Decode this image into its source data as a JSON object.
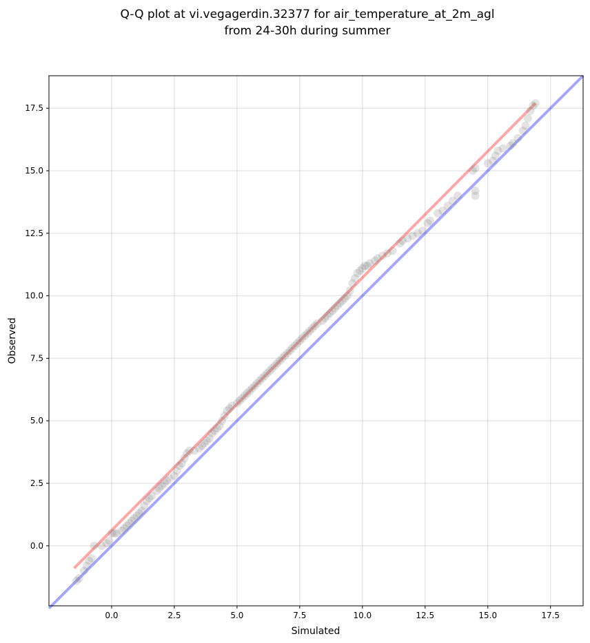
{
  "chart_data": {
    "type": "scatter",
    "title": "Q-Q plot at vi.vegagerdin.32377 for air_temperature_at_2m_agl",
    "subtitle": "from 24-30h during summer",
    "xlabel": "Simulated",
    "ylabel": "Observed",
    "xlim": [
      -2.5,
      18.8
    ],
    "ylim": [
      -2.4,
      18.8
    ],
    "xticks": [
      0.0,
      2.5,
      5.0,
      7.5,
      10.0,
      12.5,
      15.0,
      17.5
    ],
    "yticks": [
      0.0,
      2.5,
      5.0,
      7.5,
      10.0,
      12.5,
      15.0,
      17.5
    ],
    "xtick_labels": [
      "0.0",
      "2.5",
      "5.0",
      "7.5",
      "10.0",
      "12.5",
      "15.0",
      "17.5"
    ],
    "ytick_labels": [
      "0.0",
      "2.5",
      "5.0",
      "7.5",
      "10.0",
      "12.5",
      "15.0",
      "17.5"
    ],
    "grid": true,
    "point_color": "#808080",
    "identity_line": {
      "color": "#0000ff",
      "x": [
        -2.5,
        18.8
      ],
      "y": [
        -2.5,
        18.8
      ]
    },
    "fit_line": {
      "color": "#ff0000",
      "x": [
        -1.5,
        16.9
      ],
      "y": [
        -0.9,
        17.7
      ]
    },
    "series": [
      {
        "points": [
          [
            -1.4,
            -1.4
          ],
          [
            -1.3,
            -1.3
          ],
          [
            -1.1,
            -1.0
          ],
          [
            -1.0,
            -0.8
          ],
          [
            -0.9,
            -0.6
          ],
          [
            -0.8,
            -0.5
          ],
          [
            -0.7,
            0.0
          ],
          [
            -0.4,
            0.0
          ],
          [
            -0.2,
            0.1
          ],
          [
            -0.1,
            0.2
          ],
          [
            0.0,
            0.5
          ],
          [
            0.1,
            0.5
          ],
          [
            0.2,
            0.5
          ],
          [
            0.4,
            0.6
          ],
          [
            0.5,
            0.7
          ],
          [
            0.6,
            0.8
          ],
          [
            0.7,
            0.9
          ],
          [
            0.8,
            1.0
          ],
          [
            0.9,
            1.1
          ],
          [
            1.0,
            1.2
          ],
          [
            1.1,
            1.3
          ],
          [
            1.2,
            1.4
          ],
          [
            1.3,
            1.6
          ],
          [
            1.4,
            1.8
          ],
          [
            1.5,
            1.9
          ],
          [
            1.6,
            2.0
          ],
          [
            1.8,
            2.2
          ],
          [
            1.9,
            2.3
          ],
          [
            2.0,
            2.4
          ],
          [
            2.1,
            2.5
          ],
          [
            2.2,
            2.6
          ],
          [
            2.3,
            2.7
          ],
          [
            2.5,
            2.8
          ],
          [
            2.6,
            3.0
          ],
          [
            2.7,
            3.2
          ],
          [
            2.8,
            3.3
          ],
          [
            2.9,
            3.5
          ],
          [
            3.0,
            3.7
          ],
          [
            3.1,
            3.8
          ],
          [
            3.3,
            3.8
          ],
          [
            3.5,
            3.9
          ],
          [
            3.6,
            4.0
          ],
          [
            3.7,
            4.1
          ],
          [
            3.8,
            4.2
          ],
          [
            3.9,
            4.3
          ],
          [
            4.0,
            4.5
          ],
          [
            4.1,
            4.6
          ],
          [
            4.2,
            4.7
          ],
          [
            4.3,
            4.8
          ],
          [
            4.4,
            5.0
          ],
          [
            4.5,
            5.2
          ],
          [
            4.6,
            5.4
          ],
          [
            4.7,
            5.5
          ],
          [
            4.8,
            5.6
          ],
          [
            5.0,
            5.7
          ],
          [
            5.1,
            5.8
          ],
          [
            5.2,
            5.9
          ],
          [
            5.3,
            6.0
          ],
          [
            5.4,
            6.1
          ],
          [
            5.5,
            6.2
          ],
          [
            5.6,
            6.3
          ],
          [
            5.7,
            6.4
          ],
          [
            5.8,
            6.5
          ],
          [
            5.9,
            6.6
          ],
          [
            6.0,
            6.7
          ],
          [
            6.1,
            6.8
          ],
          [
            6.2,
            6.9
          ],
          [
            6.3,
            7.0
          ],
          [
            6.4,
            7.1
          ],
          [
            6.5,
            7.2
          ],
          [
            6.6,
            7.3
          ],
          [
            6.7,
            7.4
          ],
          [
            6.8,
            7.5
          ],
          [
            6.9,
            7.6
          ],
          [
            7.0,
            7.7
          ],
          [
            7.1,
            7.8
          ],
          [
            7.2,
            7.9
          ],
          [
            7.3,
            8.0
          ],
          [
            7.4,
            8.1
          ],
          [
            7.5,
            8.2
          ],
          [
            7.6,
            8.3
          ],
          [
            7.7,
            8.4
          ],
          [
            7.8,
            8.5
          ],
          [
            7.9,
            8.6
          ],
          [
            8.0,
            8.7
          ],
          [
            8.1,
            8.8
          ],
          [
            8.2,
            8.9
          ],
          [
            8.4,
            9.0
          ],
          [
            8.5,
            9.1
          ],
          [
            8.6,
            9.2
          ],
          [
            8.7,
            9.3
          ],
          [
            8.8,
            9.4
          ],
          [
            8.9,
            9.5
          ],
          [
            9.0,
            9.6
          ],
          [
            9.1,
            9.7
          ],
          [
            9.2,
            9.8
          ],
          [
            9.3,
            9.9
          ],
          [
            9.4,
            10.0
          ],
          [
            9.5,
            10.2
          ],
          [
            9.6,
            10.5
          ],
          [
            9.7,
            10.7
          ],
          [
            9.8,
            10.9
          ],
          [
            9.9,
            11.0
          ],
          [
            10.0,
            11.1
          ],
          [
            10.1,
            11.2
          ],
          [
            10.2,
            11.2
          ],
          [
            10.3,
            11.3
          ],
          [
            10.5,
            11.4
          ],
          [
            10.6,
            11.5
          ],
          [
            10.8,
            11.6
          ],
          [
            11.0,
            11.7
          ],
          [
            11.2,
            11.8
          ],
          [
            11.5,
            12.1
          ],
          [
            11.6,
            12.2
          ],
          [
            11.8,
            12.3
          ],
          [
            12.0,
            12.4
          ],
          [
            12.2,
            12.5
          ],
          [
            12.4,
            12.6
          ],
          [
            12.6,
            12.9
          ],
          [
            12.7,
            13.0
          ],
          [
            13.0,
            13.3
          ],
          [
            13.2,
            13.4
          ],
          [
            13.4,
            13.6
          ],
          [
            13.6,
            13.8
          ],
          [
            13.8,
            14.0
          ],
          [
            14.5,
            14.0
          ],
          [
            14.5,
            14.2
          ],
          [
            14.4,
            15.0
          ],
          [
            14.5,
            15.1
          ],
          [
            15.0,
            15.3
          ],
          [
            15.2,
            15.4
          ],
          [
            15.3,
            15.6
          ],
          [
            15.4,
            15.8
          ],
          [
            15.6,
            15.9
          ],
          [
            15.9,
            16.0
          ],
          [
            16.0,
            16.1
          ],
          [
            16.2,
            16.3
          ],
          [
            16.4,
            16.6
          ],
          [
            16.5,
            16.8
          ],
          [
            16.6,
            17.1
          ],
          [
            16.7,
            17.4
          ],
          [
            16.8,
            17.6
          ],
          [
            16.9,
            17.7
          ]
        ]
      }
    ]
  }
}
